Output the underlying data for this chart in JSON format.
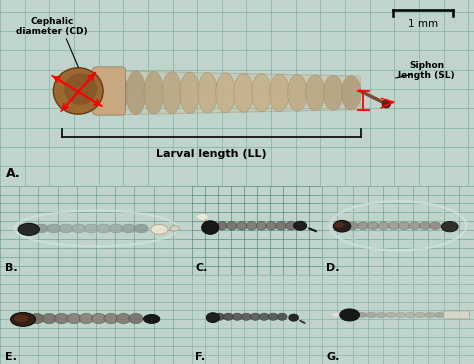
{
  "fig_width": 4.74,
  "fig_height": 3.64,
  "dpi": 100,
  "panel_A": {
    "bg_color": "#b8cec6",
    "grid_color": "#6aaa95",
    "label": "A.",
    "scale_bar_text": "1 mm",
    "cephalic_label": "Cephalic\ndiameter (CD)",
    "larval_label": "Larval length (LL)",
    "siphon_label": "Siphon\nlength (SL)",
    "larva_color": "#c8b898",
    "head_color": "#8b5a2b"
  },
  "panel_B": {
    "bg_color": "#b8d0c8",
    "grid_color": "#68a090",
    "label": "B."
  },
  "panel_C": {
    "bg_color": "#a8c8bc",
    "grid_color": "#508878",
    "label": "C."
  },
  "panel_D": {
    "bg_color": "#c0d8d0",
    "grid_color": "#70a898",
    "label": "D."
  },
  "panel_E": {
    "bg_color": "#c8d8d0",
    "grid_color": "#78a898",
    "label": "E."
  },
  "panel_F": {
    "bg_color": "#d8e8e4",
    "grid_color": "#88b8ac",
    "label": "F."
  },
  "panel_G": {
    "bg_color": "#d8e8e4",
    "grid_color": "#88b8ac",
    "label": "G."
  }
}
